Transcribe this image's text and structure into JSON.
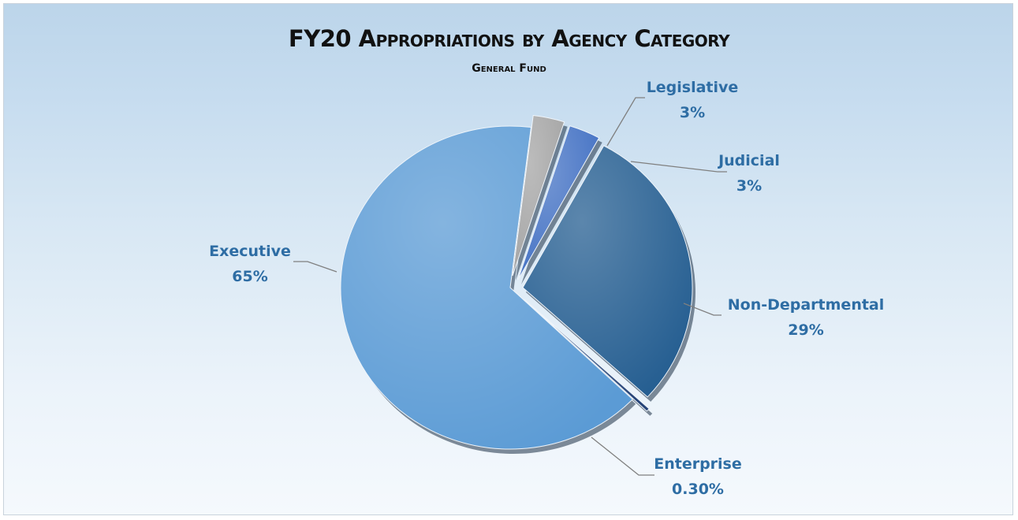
{
  "chart_data": {
    "type": "pie",
    "title": "FY20 Appropriations by Agency Category",
    "subtitle": "General Fund",
    "slices": [
      {
        "name": "Executive",
        "value": 65,
        "label": "65%",
        "color": "#5b9bd5"
      },
      {
        "name": "Legislative",
        "value": 3,
        "label": "3%",
        "color": "#a5a5a5"
      },
      {
        "name": "Judicial",
        "value": 3,
        "label": "3%",
        "color": "#4472c4"
      },
      {
        "name": "Non-Departmental",
        "value": 29,
        "label": "29%",
        "color": "#255e91"
      },
      {
        "name": "Enterprise",
        "value": 0.3,
        "label": "0.30%",
        "color": "#264478"
      }
    ],
    "legend": "none",
    "label_color": "#2e6da4"
  }
}
